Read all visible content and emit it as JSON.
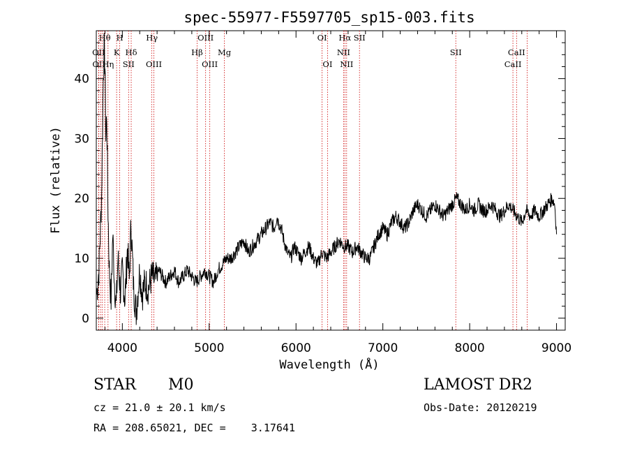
{
  "chart_data": {
    "type": "line",
    "title": "spec-55977-F5597705_sp15-003.fits",
    "xlabel": "Wavelength (Å)",
    "ylabel": "Flux (relative)",
    "xlim": [
      3700,
      9100
    ],
    "ylim": [
      -2,
      48
    ],
    "xticks": [
      4000,
      5000,
      6000,
      7000,
      8000,
      9000
    ],
    "yticks": [
      0,
      10,
      20,
      30,
      40
    ],
    "grid": false,
    "line_color": "#000000",
    "marker_color": "#cc0000",
    "series": [
      {
        "x": [
          3705,
          3730,
          3760,
          3780,
          3790,
          3800,
          3810,
          3820,
          3835,
          3850,
          3870,
          3890,
          3910,
          3930,
          3950,
          3980,
          4000,
          4030,
          4060,
          4080,
          4100,
          4130,
          4160,
          4200,
          4230,
          4260,
          4300,
          4340,
          4380,
          4420,
          4460,
          4500,
          4550,
          4600,
          4650,
          4700,
          4750,
          4800,
          4850,
          4900,
          4950,
          5000,
          5050,
          5100,
          5150,
          5200,
          5250,
          5300,
          5350,
          5400,
          5450,
          5500,
          5550,
          5600,
          5650,
          5700,
          5750,
          5780,
          5800,
          5830,
          5860,
          5900,
          5940,
          5980,
          6020,
          6060,
          6100,
          6150,
          6200,
          6250,
          6300,
          6350,
          6400,
          6450,
          6500,
          6550,
          6600,
          6650,
          6700,
          6750,
          6800,
          6850,
          6900,
          6950,
          7000,
          7050,
          7100,
          7150,
          7200,
          7250,
          7300,
          7350,
          7400,
          7450,
          7500,
          7550,
          7600,
          7650,
          7700,
          7750,
          7800,
          7850,
          7900,
          7950,
          8000,
          8050,
          8100,
          8150,
          8200,
          8250,
          8300,
          8350,
          8400,
          8450,
          8500,
          8550,
          8600,
          8650,
          8700,
          8750,
          8800,
          8850,
          8900,
          8950,
          8980,
          9000
        ],
        "y": [
          4,
          8,
          20,
          40,
          45,
          42,
          30,
          34,
          18,
          8,
          3,
          14,
          6,
          2,
          10,
          4,
          8,
          3,
          12,
          6,
          16,
          5,
          1,
          8,
          4,
          6,
          5,
          7,
          6,
          8,
          7,
          6,
          7,
          8,
          6,
          7,
          8,
          7,
          6,
          7,
          8,
          7,
          6,
          8,
          9,
          10,
          10,
          11,
          12,
          13,
          11,
          12,
          13,
          14,
          15,
          16,
          15,
          17,
          16,
          15,
          13,
          11,
          10,
          12,
          11,
          10,
          11,
          12,
          10,
          9,
          11,
          10,
          11,
          12,
          13,
          12,
          12,
          11,
          12,
          11,
          10,
          10,
          12,
          14,
          15,
          14,
          16,
          17,
          16,
          15,
          16,
          18,
          19,
          18,
          17,
          18,
          19,
          18,
          17,
          18,
          19,
          20,
          19,
          18,
          19,
          18,
          19,
          18,
          18,
          19,
          18,
          17,
          18,
          19,
          18,
          17,
          16,
          18,
          17,
          18,
          17,
          18,
          19,
          20,
          19,
          14
        ]
      }
    ],
    "lines_top": [
      {
        "label": "Hθ",
        "x": 3797
      },
      {
        "label": "H",
        "x": 3970
      },
      {
        "label": "Hγ",
        "x": 4340
      },
      {
        "label": "OIII",
        "x": 4959
      },
      {
        "label": "OI",
        "x": 6300
      },
      {
        "label": "Hα",
        "x": 6563
      },
      {
        "label": "SII",
        "x": 6731
      }
    ],
    "lines_mid": [
      {
        "label": "OII",
        "x": 3727
      },
      {
        "label": "K",
        "x": 3934
      },
      {
        "label": "Hδ",
        "x": 4102
      },
      {
        "label": "Hβ",
        "x": 4861
      },
      {
        "label": "Mg",
        "x": 5175
      },
      {
        "label": "NII",
        "x": 6548
      },
      {
        "label": "SII",
        "x": 7840
      },
      {
        "label": "CaII",
        "x": 8540
      }
    ],
    "lines_low": [
      {
        "label": "OII",
        "x": 3729
      },
      {
        "label": "Hη",
        "x": 3835
      },
      {
        "label": "SII",
        "x": 4072
      },
      {
        "label": "OIII",
        "x": 4363
      },
      {
        "label": "OIII",
        "x": 5007
      },
      {
        "label": "OI",
        "x": 6363
      },
      {
        "label": "NII",
        "x": 6583
      },
      {
        "label": "CaII",
        "x": 8498
      }
    ],
    "extra_marker_x": [
      3750,
      3770,
      8662
    ]
  },
  "info": {
    "object_class": "STAR",
    "subclass": "M0",
    "redshift": "cz = 21.0 ± 20.1 km/s",
    "coords": "RA = 208.65021, DEC =    3.17641",
    "survey": "LAMOST DR2",
    "obs_date": "Obs-Date: 20120219"
  }
}
